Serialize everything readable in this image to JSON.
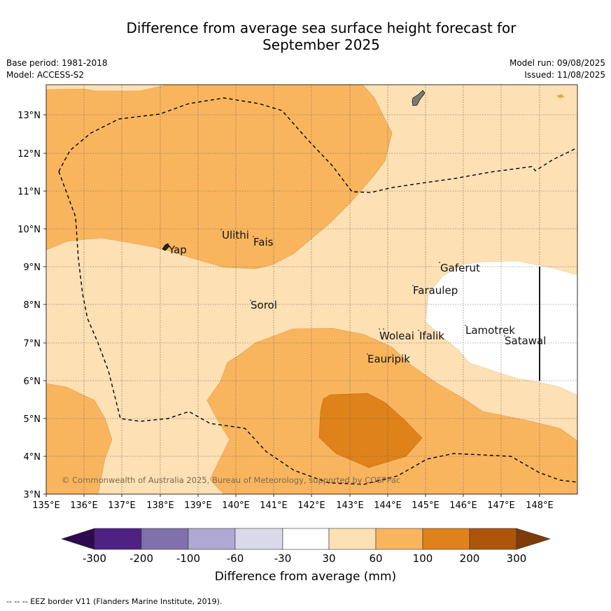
{
  "title_line1": "Difference from average sea surface height forecast for",
  "title_line2": "September 2025",
  "meta": {
    "base_period": "Base period: 1981-2018",
    "model": "Model: ACCESS-S2",
    "model_run": "Model run: 09/08/2025",
    "issued": "Issued: 11/08/2025"
  },
  "map": {
    "lon_ticks": [
      "135°E",
      "136°E",
      "137°E",
      "138°E",
      "139°E",
      "140°E",
      "141°E",
      "142°E",
      "143°E",
      "144°E",
      "145°E",
      "146°E",
      "147°E",
      "148°E"
    ],
    "lat_ticks": [
      "3°N",
      "4°N",
      "5°N",
      "6°N",
      "7°N",
      "8°N",
      "9°N",
      "10°N",
      "11°N",
      "12°N",
      "13°N"
    ],
    "places": [
      {
        "name": "Yap"
      },
      {
        "name": "Ulithi"
      },
      {
        "name": "Fais"
      },
      {
        "name": "Sorol"
      },
      {
        "name": "Gaferut"
      },
      {
        "name": "Faraulep"
      },
      {
        "name": "Woleai"
      },
      {
        "name": "Ifalik"
      },
      {
        "name": "Lamotrek"
      },
      {
        "name": "Satawal"
      },
      {
        "name": "Eauripik"
      }
    ],
    "copyright": "© Commonwealth of Australia 2025, Bureau of Meteorology, supported by COSPPac",
    "colors": {
      "band_30_60": "#fde0b4",
      "band_60_100": "#f9b55e",
      "band_100_200": "#e0821a",
      "neutral": "#ffffff"
    }
  },
  "colorbar": {
    "labels": [
      "-300",
      "-200",
      "-100",
      "-60",
      "-30",
      "30",
      "60",
      "100",
      "200",
      "300"
    ],
    "colors": [
      "#2d0a4f",
      "#4e2183",
      "#8070ab",
      "#aea8d3",
      "#d9d9ea",
      "#ffffff",
      "#fde0b4",
      "#f9b55e",
      "#e0821a",
      "#ad560b",
      "#7f3b08"
    ],
    "title": "Difference from average (mm)"
  },
  "footnote": "--  --  -- EEZ border V11 (Flanders Marine Institute, 2019)."
}
